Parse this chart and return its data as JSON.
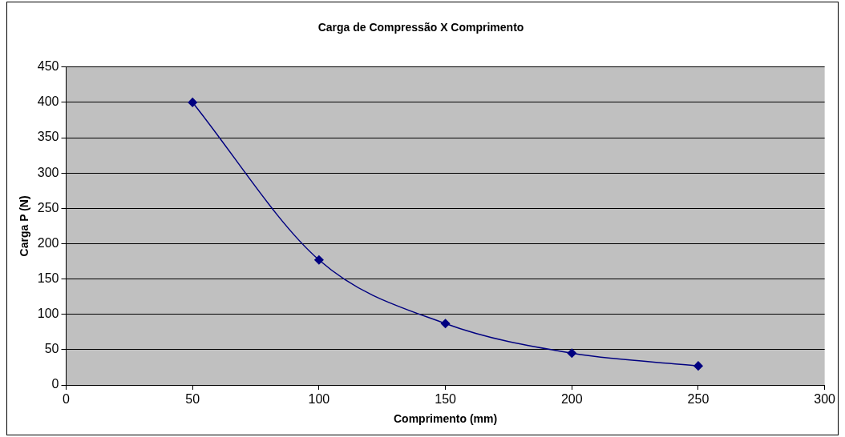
{
  "chart_data": {
    "type": "line",
    "title": "Carga de Compressão X Comprimento",
    "xlabel": "Comprimento (mm)",
    "ylabel": "Carga P (N)",
    "x": [
      50,
      100,
      150,
      200,
      250
    ],
    "series": [
      {
        "color": "#000080",
        "values": [
          400,
          177,
          87,
          45,
          27
        ]
      }
    ],
    "xlim": [
      0,
      300
    ],
    "xticks": [
      0,
      50,
      100,
      150,
      200,
      250,
      300
    ],
    "ylim": [
      0,
      450
    ],
    "yticks": [
      0,
      50,
      100,
      150,
      200,
      250,
      300,
      350,
      400,
      450
    ],
    "grid": "y",
    "legend": false,
    "marker": "diamond",
    "line_style": "solid"
  }
}
